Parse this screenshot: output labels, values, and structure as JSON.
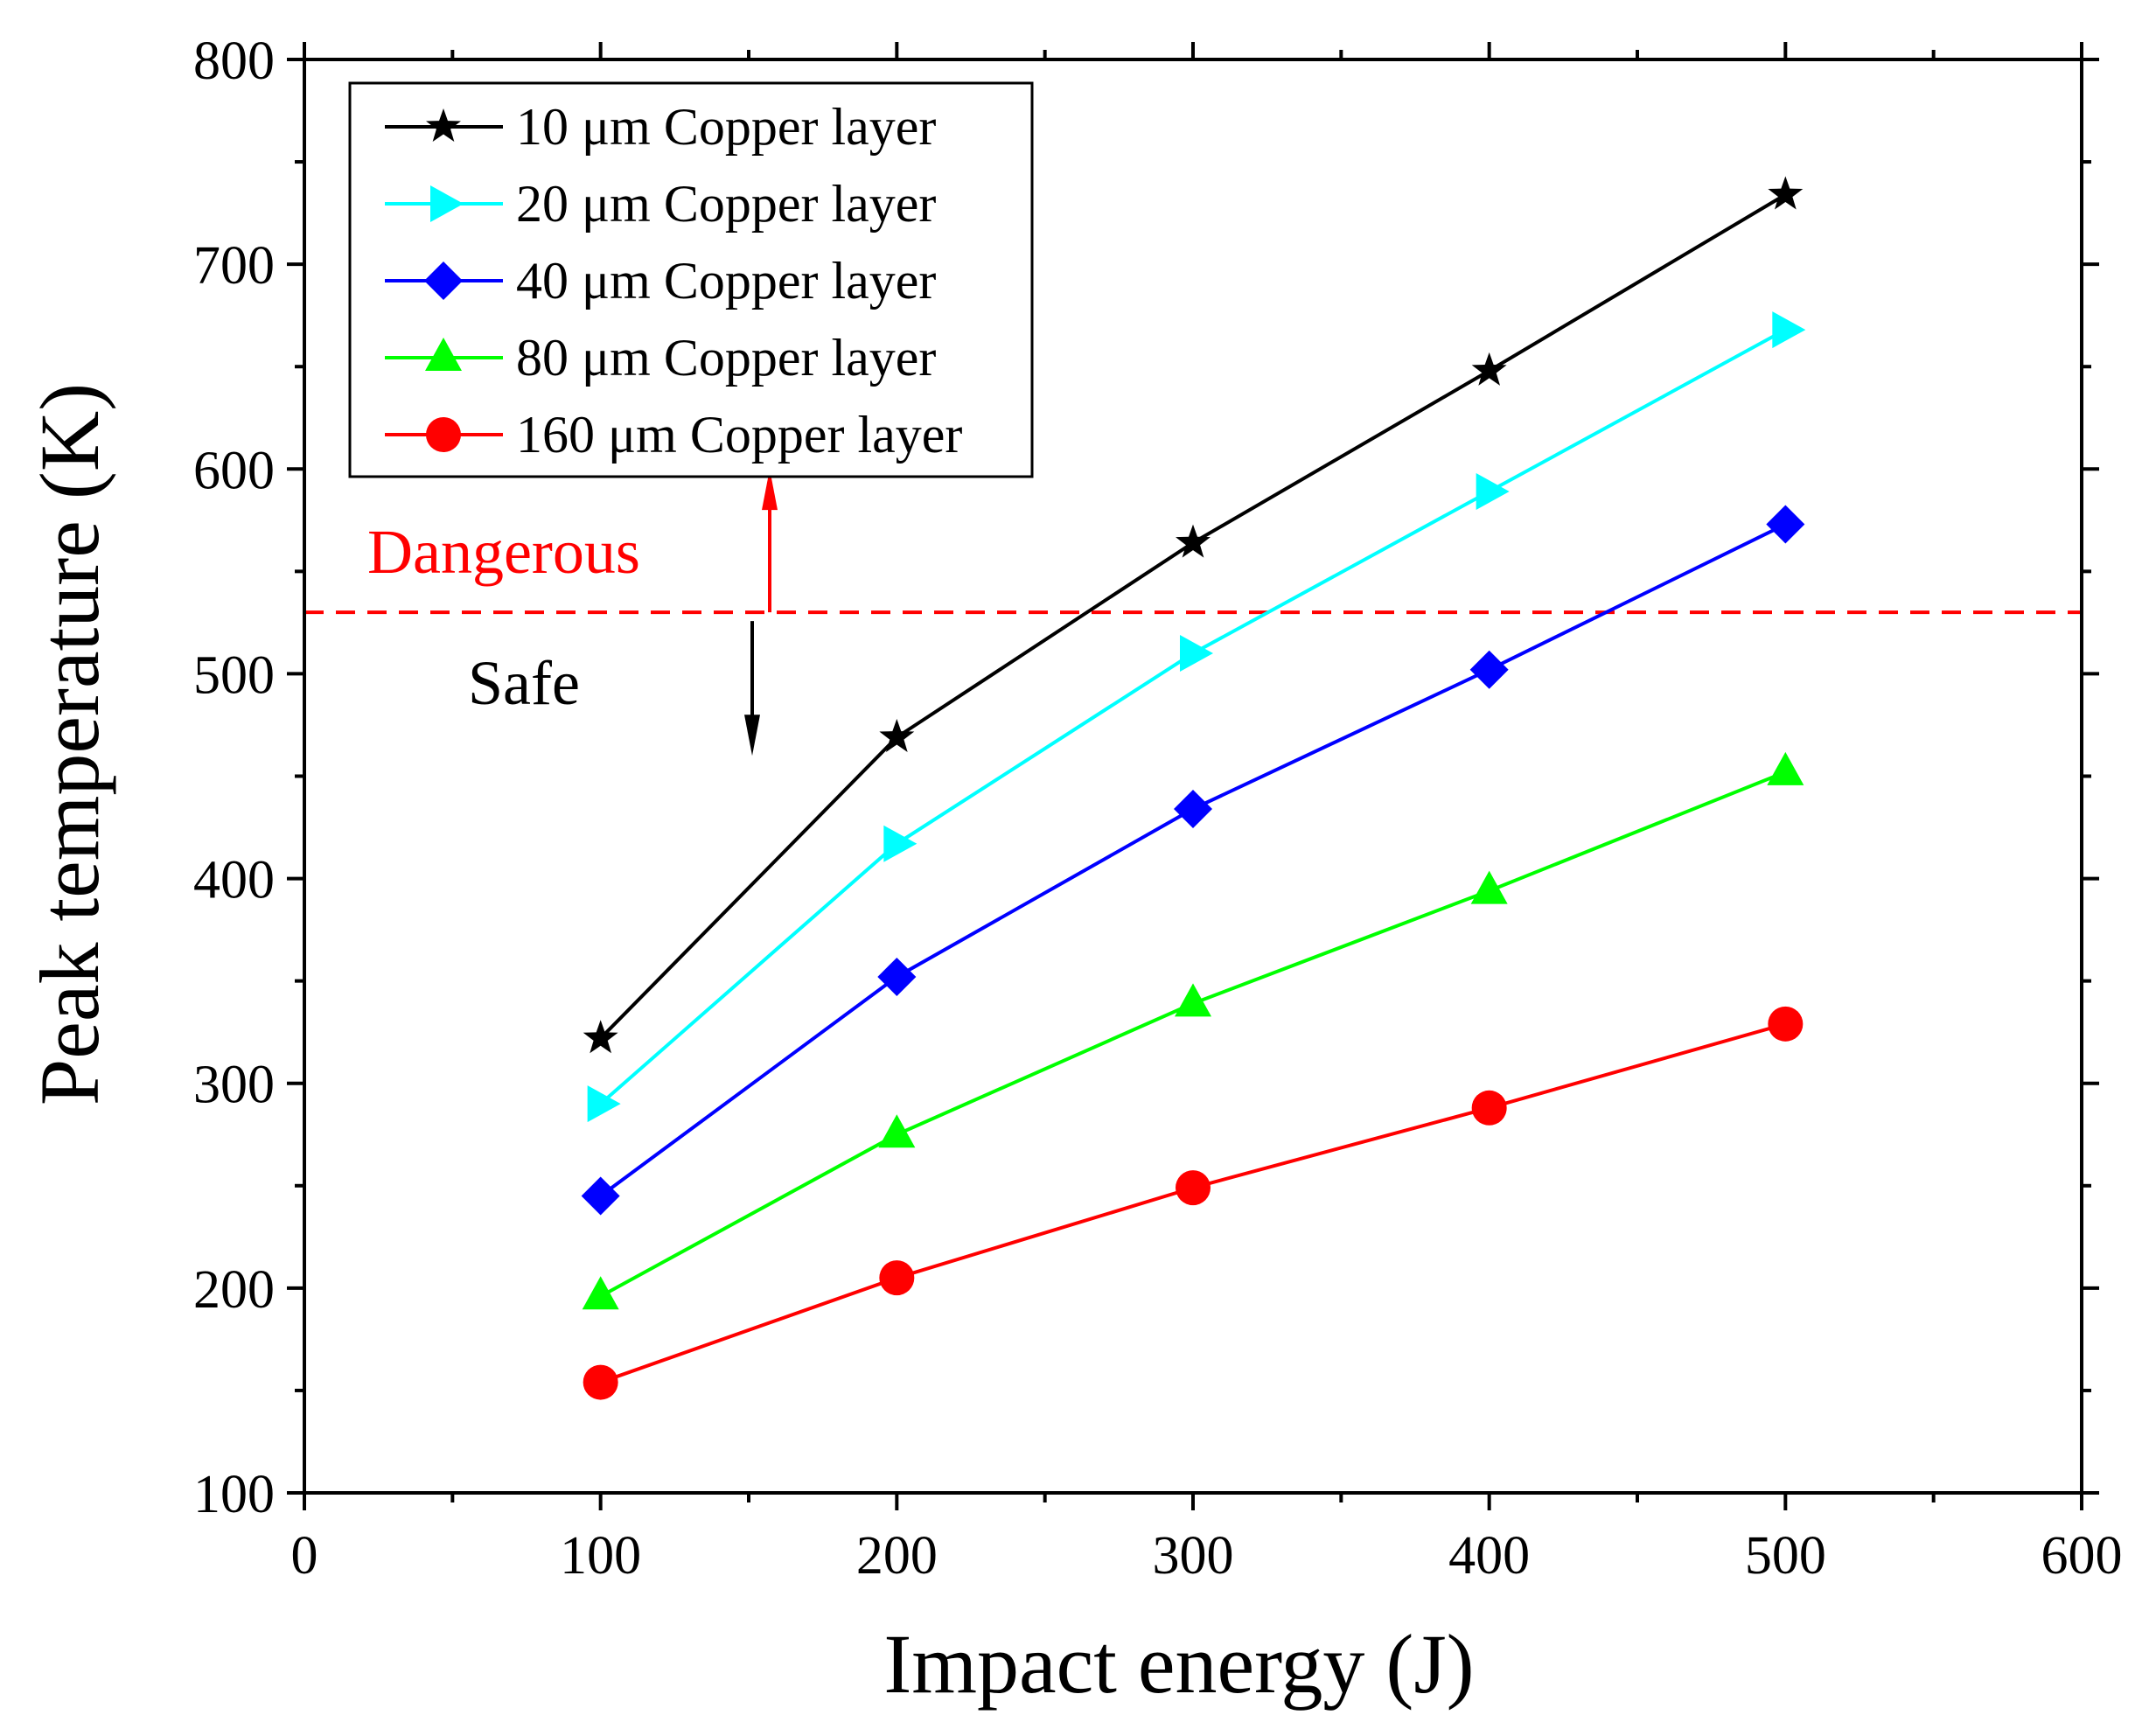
{
  "chart_data": {
    "type": "line",
    "title": "",
    "xlabel": "Impact energy (J)",
    "ylabel": "Peak temperature (K)",
    "xlim": [
      0,
      600
    ],
    "ylim": [
      100,
      800
    ],
    "xticks": [
      0,
      100,
      200,
      300,
      400,
      500,
      600
    ],
    "yticks": [
      100,
      200,
      300,
      400,
      500,
      600,
      700,
      800
    ],
    "x": [
      100,
      200,
      300,
      400,
      500
    ],
    "series": [
      {
        "name": "10 μm Copper layer",
        "color": "#000000",
        "marker": "star",
        "values": [
          322,
          469,
          564,
          648,
          734
        ]
      },
      {
        "name": "20 μm Copper layer",
        "color": "#00FFFF",
        "marker": "triangle-right",
        "values": [
          290,
          417,
          510,
          589,
          668
        ]
      },
      {
        "name": "40 μm Copper layer",
        "color": "#0000FF",
        "marker": "diamond",
        "values": [
          245,
          352,
          434,
          502,
          573
        ]
      },
      {
        "name": "80 μm Copper layer",
        "color": "#00FF00",
        "marker": "triangle-up",
        "values": [
          196,
          275,
          339,
          394,
          452
        ]
      },
      {
        "name": "160 μm Copper layer",
        "color": "#FF0000",
        "marker": "circle",
        "values": [
          154,
          205,
          249,
          288,
          329
        ]
      }
    ],
    "legend_position": "top-left",
    "threshold": {
      "value": 530,
      "color": "#FF0000",
      "style": "dashed"
    },
    "annotations": {
      "dangerous": {
        "text": "Dangerous",
        "color": "#FF0000"
      },
      "safe": {
        "text": "Safe",
        "color": "#000000"
      }
    }
  }
}
